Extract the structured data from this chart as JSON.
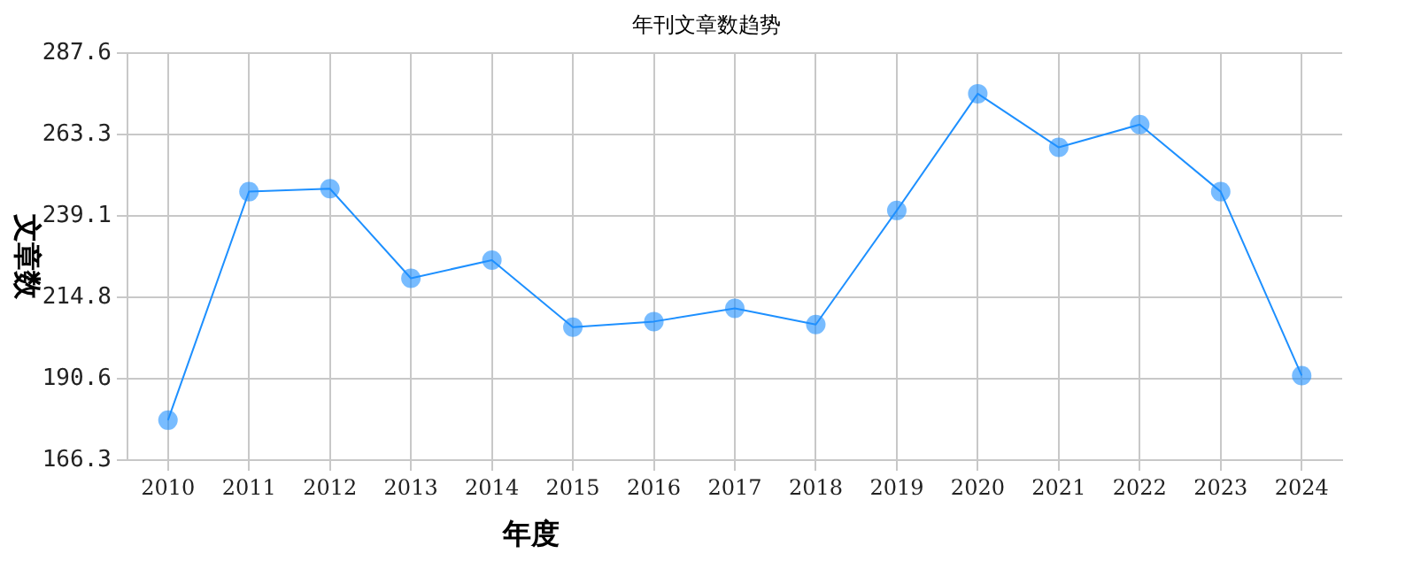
{
  "chart_data": {
    "type": "line",
    "title": "年刊文章数趋势",
    "xlabel": "年度",
    "ylabel": "文章数",
    "categories": [
      "2010",
      "2011",
      "2012",
      "2013",
      "2014",
      "2015",
      "2016",
      "2017",
      "2018",
      "2019",
      "2020",
      "2021",
      "2022",
      "2023",
      "2024"
    ],
    "series": [
      {
        "color": "#1e90ff",
        "values": [
          178.2,
          246.3,
          247.2,
          220.5,
          225.9,
          205.9,
          207.6,
          211.5,
          206.7,
          240.7,
          275.5,
          259.5,
          266.3,
          246.3,
          191.5
        ]
      }
    ],
    "ylim": [
      166.3,
      287.6
    ],
    "yticks": [
      166.3,
      190.6,
      214.8,
      239.1,
      263.3,
      287.6
    ],
    "grid": true,
    "marker": "circle",
    "line_style": "solid",
    "legend": false
  }
}
